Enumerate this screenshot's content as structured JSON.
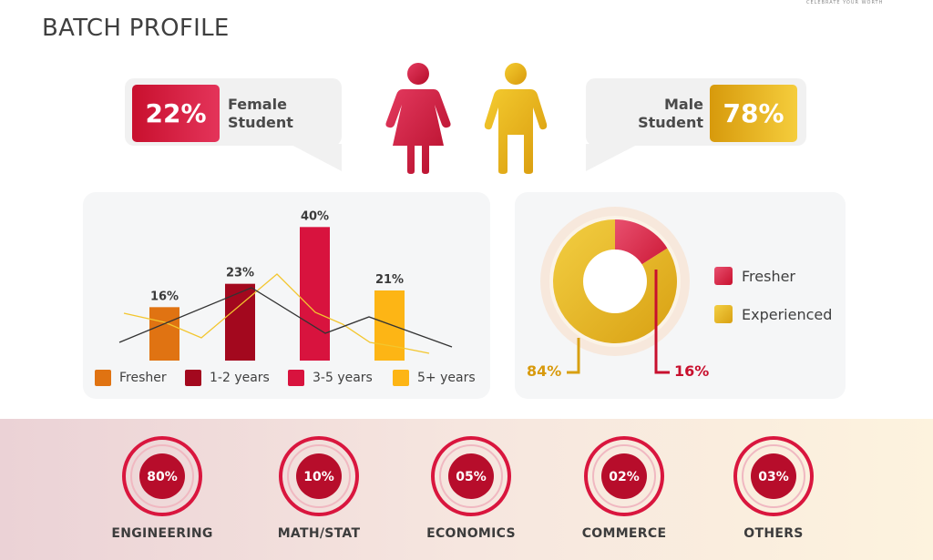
{
  "header": {
    "tagline": "CELEBRATE YOUR WORTH",
    "title": "BATCH PROFILE"
  },
  "gender": {
    "female": {
      "percent": "22%",
      "label_line1": "Female",
      "label_line2": "Student",
      "color": "#c8102e"
    },
    "male": {
      "percent": "78%",
      "label_line1": "Male",
      "label_line2": "Student",
      "color": "#e0a91a"
    },
    "icons": [
      "female-figure-icon",
      "male-figure-icon"
    ]
  },
  "chart_data": [
    {
      "type": "bar",
      "categories": [
        "Fresher",
        "1-2 years",
        "3-5 years",
        "5+ years"
      ],
      "values": [
        16,
        23,
        40,
        21
      ],
      "value_labels": [
        "16%",
        "23%",
        "40%",
        "21%"
      ],
      "colors": [
        "#e07312",
        "#a3081e",
        "#d8133e",
        "#fdb515"
      ],
      "ylim": [
        0,
        45
      ],
      "legend": [
        "Fresher",
        "1-2 years",
        "3-5 years",
        "5+ years"
      ],
      "legend_position": "bottom",
      "overlay_lines": [
        {
          "color": "#333333"
        },
        {
          "color": "#f3c62e"
        }
      ]
    },
    {
      "type": "pie",
      "style": "donut",
      "categories": [
        "Fresher",
        "Experienced"
      ],
      "values": [
        16,
        84
      ],
      "value_labels": [
        "16%",
        "84%"
      ],
      "colors": [
        "#d8133e",
        "#e7b21a"
      ],
      "legend": [
        "Fresher",
        "Experienced"
      ],
      "legend_position": "right"
    }
  ],
  "disciplines": [
    {
      "name": "ENGINEERING",
      "percent": "80%"
    },
    {
      "name": "MATH/STAT",
      "percent": "10%"
    },
    {
      "name": "ECONOMICS",
      "percent": "05%"
    },
    {
      "name": "COMMERCE",
      "percent": "02%"
    },
    {
      "name": "OTHERS",
      "percent": "03%"
    }
  ]
}
